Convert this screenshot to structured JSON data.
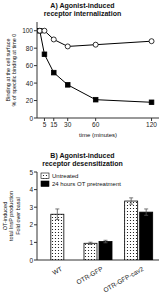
{
  "chart_data": [
    {
      "type": "line",
      "title": "A) Agonist-induced\nreceptor internalization",
      "xlabel": "time (minutes)",
      "ylabel": "Binding at the cell surface\n% of specific binding at time 0",
      "x": [
        0,
        5,
        15,
        30,
        60,
        120
      ],
      "xlim": [
        -3,
        128
      ],
      "xticks": [
        5,
        15,
        30,
        60,
        120
      ],
      "ylim": [
        0,
        110
      ],
      "yticks": [
        0,
        20,
        40,
        60,
        80,
        100
      ],
      "grid": false,
      "series": [
        {
          "values": [
            100,
            73,
            52,
            38,
            21,
            18
          ],
          "color": "#000000",
          "marker": "square"
        },
        {
          "values": [
            100,
            100,
            90,
            82,
            84,
            88
          ],
          "color": "#000000",
          "marker": "open-circle"
        }
      ]
    },
    {
      "type": "bar",
      "title": "B) Agonist-induced\nreceptor desensitization",
      "ylabel": "OT-induced\ntotal InsP production\nFold over basal",
      "categories": [
        "WT",
        "OTR-GFP",
        "OTR-GFP-cav2"
      ],
      "ylim": [
        0,
        5
      ],
      "yticks": [
        0,
        1,
        2,
        3,
        4,
        5
      ],
      "grid": false,
      "legend": "upper left",
      "series": [
        {
          "name": "Untreated",
          "color": "#ffffff",
          "values": [
            2.6,
            0.95,
            3.35
          ],
          "errors": [
            0.3,
            0.06,
            0.18
          ]
        },
        {
          "name": "24 hours OT pretreatment",
          "color": "#000000",
          "values": [
            null,
            1.05,
            2.72
          ],
          "errors": [
            null,
            0.07,
            0.18
          ]
        }
      ]
    }
  ]
}
